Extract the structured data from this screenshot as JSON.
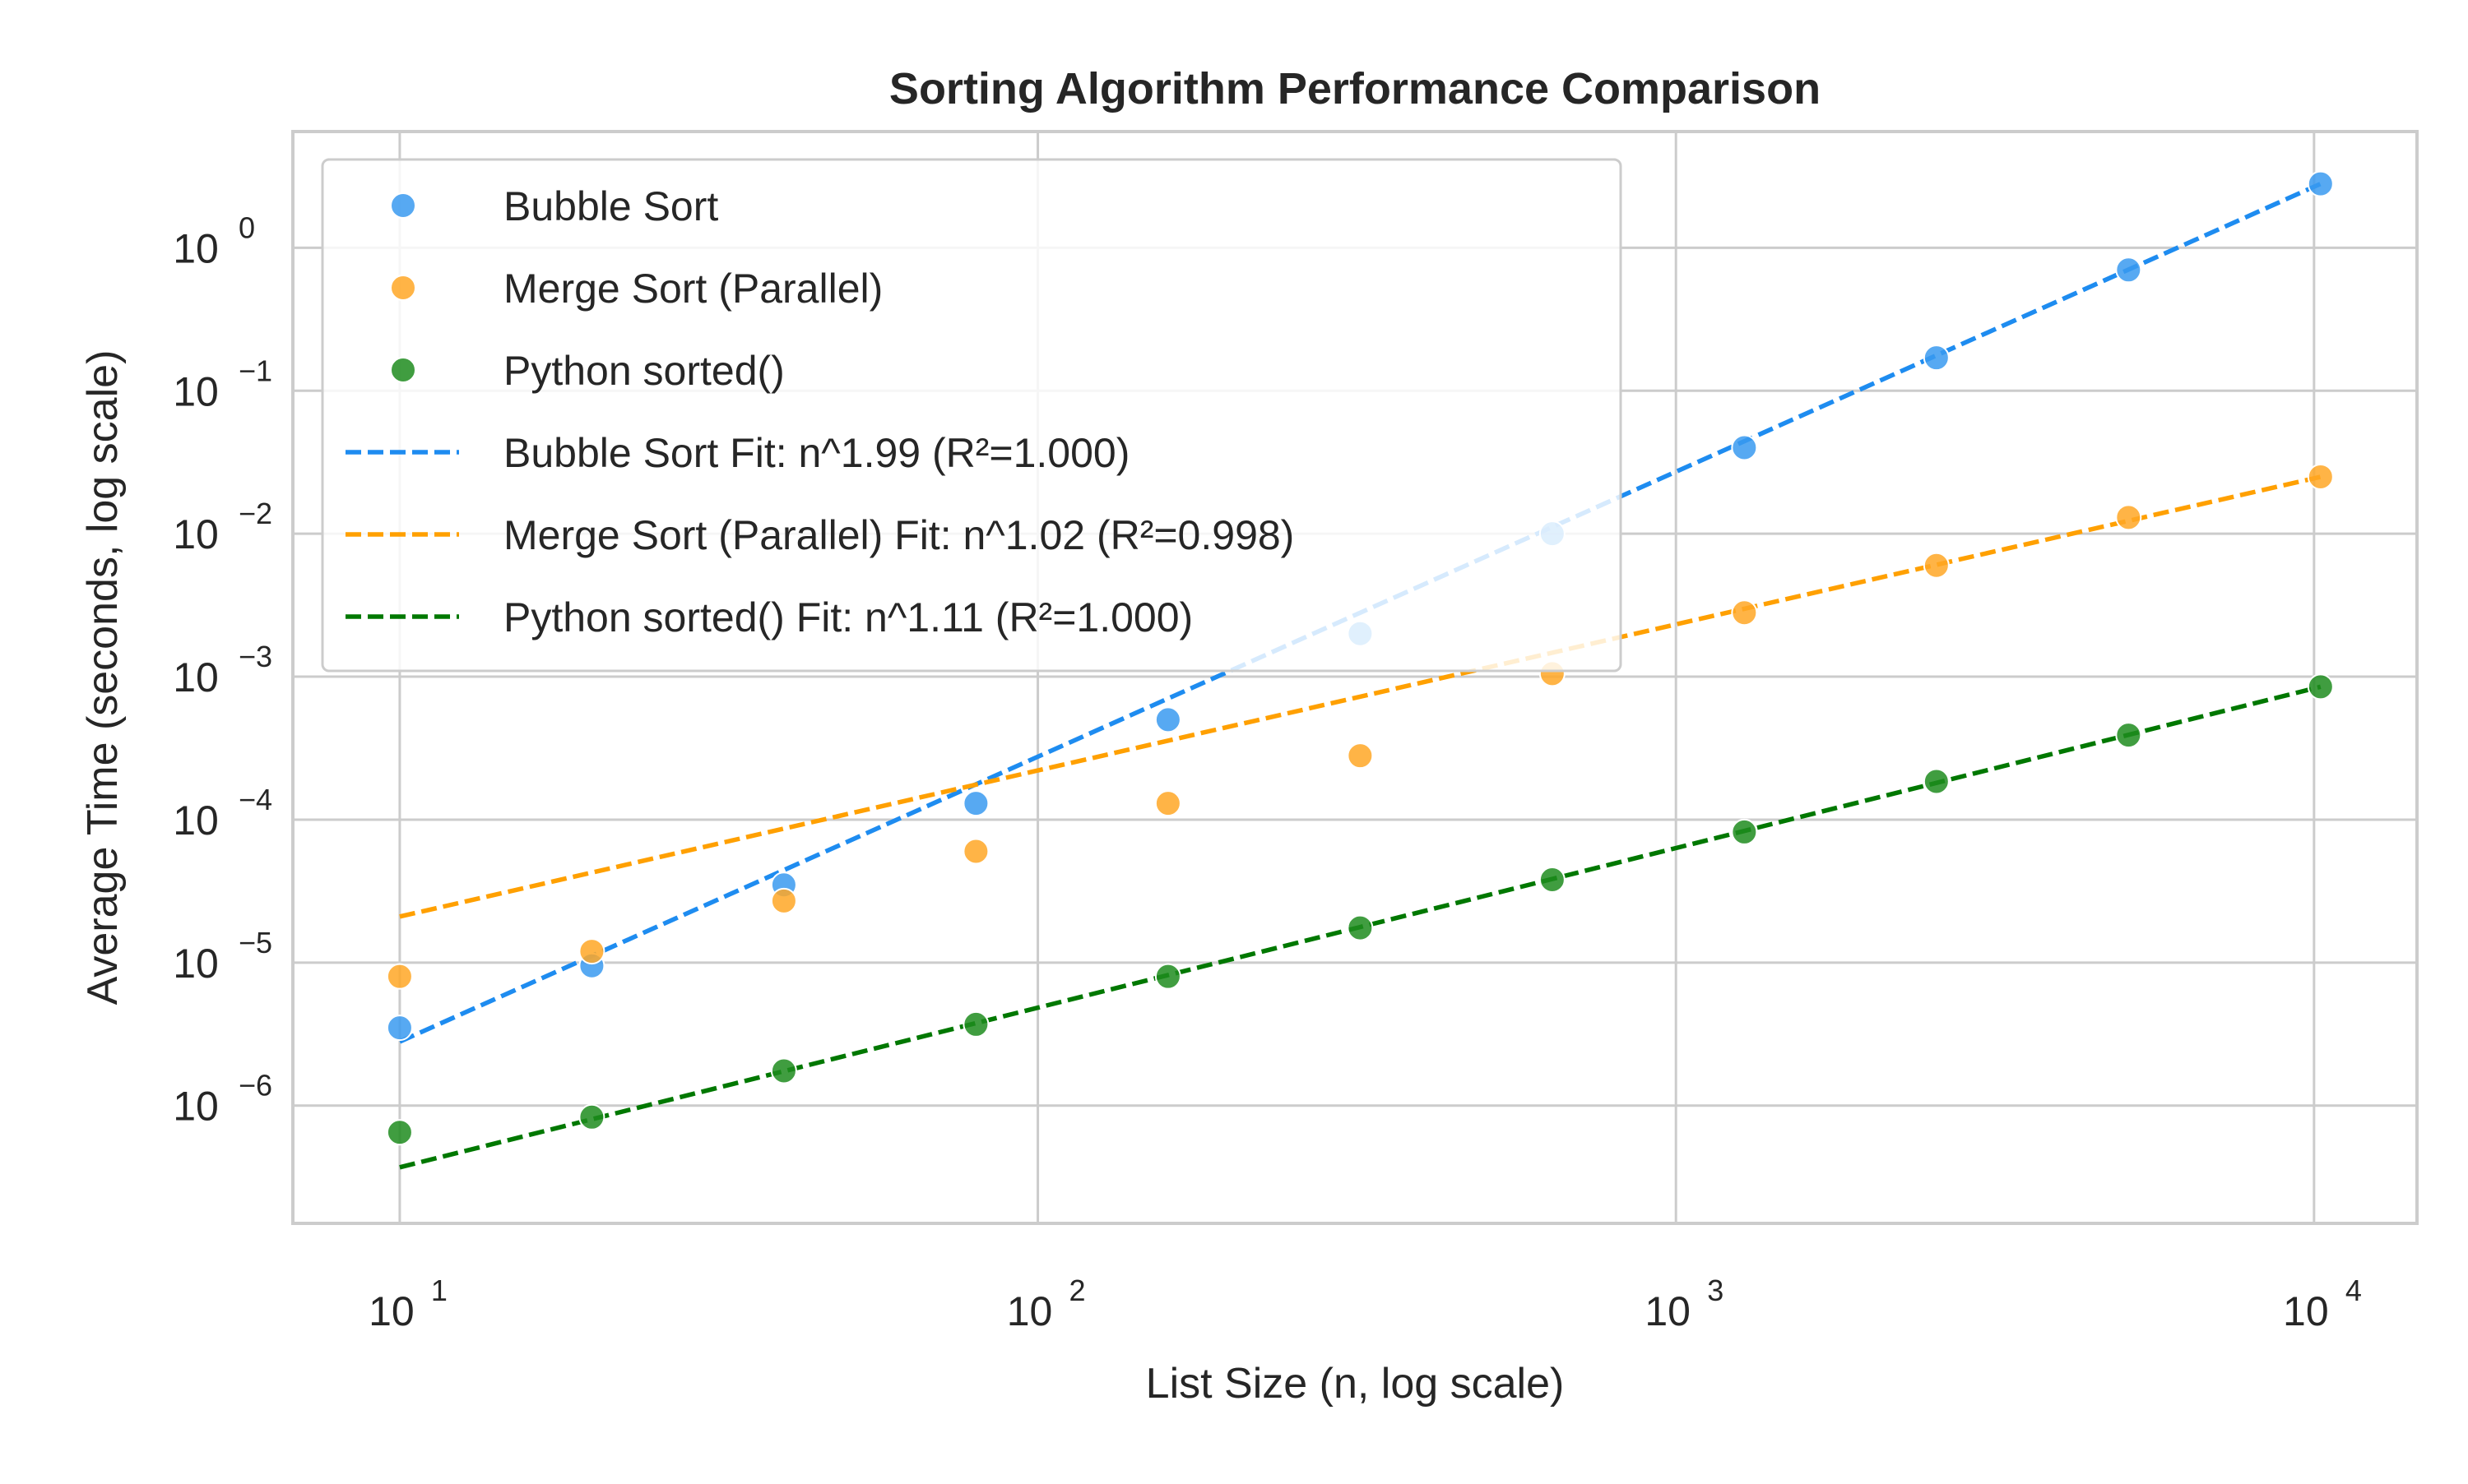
{
  "chart_data": {
    "type": "scatter",
    "title": "Sorting Algorithm Performance Comparison",
    "xlabel": "List Size (n, log scale)",
    "ylabel": "Average Time (seconds, log scale)",
    "x_scale": "log",
    "y_scale": "log",
    "xlim": [
      6.8,
      14500
    ],
    "ylim": [
      1.5e-07,
      6.5
    ],
    "grid": true,
    "legend_position": "top-left",
    "x_ticks": [
      {
        "value": 10,
        "base": "10",
        "exp": "1"
      },
      {
        "value": 100,
        "base": "10",
        "exp": "2"
      },
      {
        "value": 1000,
        "base": "10",
        "exp": "3"
      },
      {
        "value": 10000,
        "base": "10",
        "exp": "4"
      }
    ],
    "y_ticks": [
      {
        "value": 1e-06,
        "base": "10",
        "exp": "−6"
      },
      {
        "value": 1e-05,
        "base": "10",
        "exp": "−5"
      },
      {
        "value": 0.0001,
        "base": "10",
        "exp": "−4"
      },
      {
        "value": 0.001,
        "base": "10",
        "exp": "−3"
      },
      {
        "value": 0.01,
        "base": "10",
        "exp": "−2"
      },
      {
        "value": 0.1,
        "base": "10",
        "exp": "−1"
      },
      {
        "value": 1,
        "base": "10",
        "exp": "0"
      }
    ],
    "x": [
      10,
      20,
      40,
      80,
      160,
      320,
      640,
      1280,
      2560,
      5120,
      10240
    ],
    "series": [
      {
        "name": "Bubble Sort",
        "color": "#3a9af0",
        "values": [
          3.5e-06,
          9.5e-06,
          3.5e-05,
          0.00013,
          0.0005,
          0.002,
          0.01,
          0.04,
          0.17,
          0.7,
          2.8
        ]
      },
      {
        "name": "Merge Sort (Parallel)",
        "color": "#ffa726",
        "values": [
          8e-06,
          1.2e-05,
          2.7e-05,
          6e-05,
          0.00013,
          0.00028,
          0.00105,
          0.0028,
          0.006,
          0.013,
          0.025
        ]
      },
      {
        "name": "Python sorted()",
        "color": "#1e8c1e",
        "values": [
          6.5e-07,
          8.3e-07,
          1.75e-06,
          3.7e-06,
          8e-06,
          1.75e-05,
          3.8e-05,
          8.2e-05,
          0.000185,
          0.00039,
          0.00085
        ]
      }
    ],
    "fits": [
      {
        "name": "Bubble Sort Fit: n^1.99 (R²=1.000)",
        "color": "#1e8cf0",
        "x": [
          10,
          10240
        ],
        "y": [
          2.8e-06,
          2.8
        ]
      },
      {
        "name": "Merge Sort (Parallel) Fit: n^1.02 (R²=0.998)",
        "color": "#ffa000",
        "x": [
          10,
          10240
        ],
        "y": [
          2.1e-05,
          0.025
        ]
      },
      {
        "name": "Python sorted() Fit: n^1.11 (R²=1.000)",
        "color": "#007800",
        "x": [
          10,
          10240
        ],
        "y": [
          3.7e-07,
          0.00085
        ]
      }
    ]
  }
}
